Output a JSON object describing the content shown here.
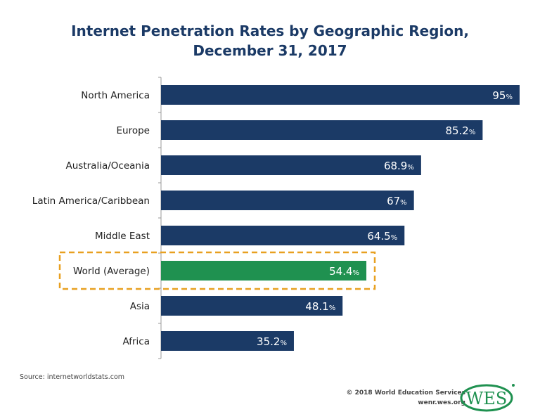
{
  "chart_data": {
    "type": "bar",
    "orientation": "horizontal",
    "title": "Internet Penetration Rates by Geographic Region,",
    "subtitle": "December 31, 2017",
    "categories": [
      "North America",
      "Europe",
      "Australia/Oceania",
      "Latin America/Caribbean",
      "Middle East",
      "World (Average)",
      "Asia",
      "Africa"
    ],
    "values": [
      95,
      85.2,
      68.9,
      67,
      64.5,
      54.4,
      48.1,
      35.2
    ],
    "value_suffix": "%",
    "xlim": [
      0,
      100
    ],
    "grid": false,
    "highlight": "World (Average)",
    "colors": {
      "bar": "#1b3a66",
      "highlight": "#1f9150",
      "highlight_box": "#e8a020",
      "title": "#1b3a66"
    }
  },
  "footer": {
    "source": "Source: internetworldstats.com",
    "copyright": "© 2018 World Education Services",
    "url": "wenr.wes.org",
    "logo_text": "WES"
  }
}
